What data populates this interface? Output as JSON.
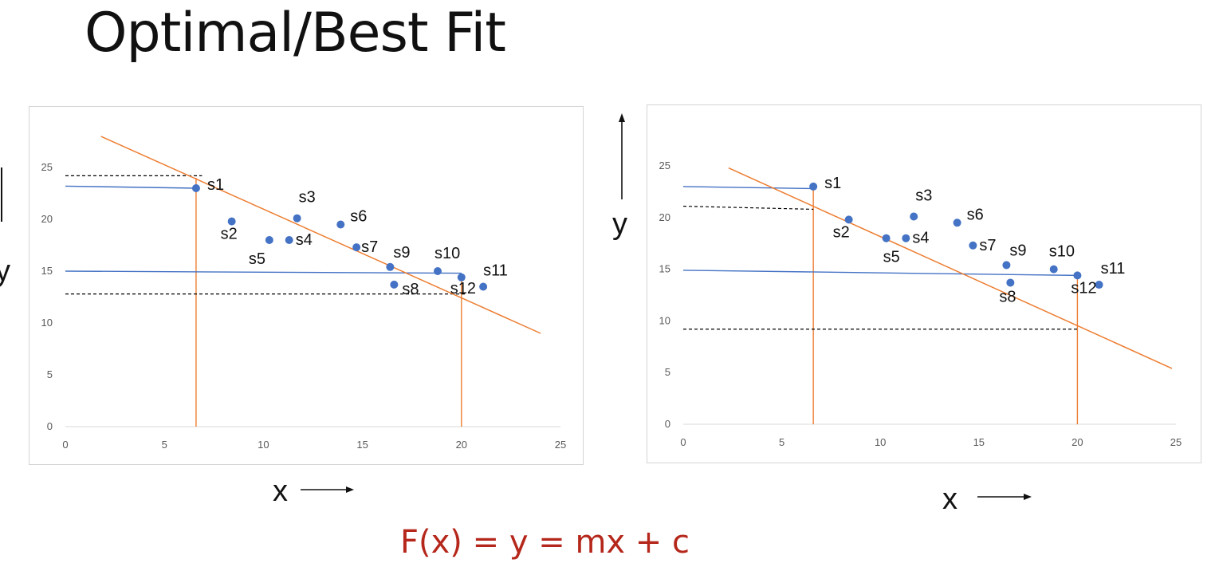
{
  "page": {
    "title": "Optimal/Best Fit",
    "formula": "F(x) = y = mx + c"
  },
  "colors": {
    "points": "#4472c4",
    "fit_line": "#ed7d31",
    "drop_line": "#ed7d31",
    "horizontal_line": "#4472c4",
    "dashed_line": "#000000",
    "formula": "#b5271b"
  },
  "chart_data": [
    {
      "type": "scatter",
      "title": "",
      "xlabel": "x",
      "ylabel": "y",
      "xlim": [
        0,
        25
      ],
      "ylim": [
        0,
        25
      ],
      "xticks": [
        "0",
        "5",
        "10",
        "15",
        "20",
        "25"
      ],
      "yticks": [
        "0",
        "5",
        "10",
        "15",
        "20",
        "25"
      ],
      "grid": false,
      "points": [
        {
          "label": "s1",
          "x": 6.6,
          "y": 23.0
        },
        {
          "label": "s2",
          "x": 8.4,
          "y": 19.8
        },
        {
          "label": "s3",
          "x": 11.7,
          "y": 20.1
        },
        {
          "label": "s4",
          "x": 11.3,
          "y": 18.0
        },
        {
          "label": "s5",
          "x": 10.3,
          "y": 18.0
        },
        {
          "label": "s6",
          "x": 13.9,
          "y": 19.5
        },
        {
          "label": "s7",
          "x": 14.7,
          "y": 17.3
        },
        {
          "label": "s8",
          "x": 16.6,
          "y": 13.7
        },
        {
          "label": "s9",
          "x": 16.4,
          "y": 15.4
        },
        {
          "label": "s10",
          "x": 18.8,
          "y": 15.0
        },
        {
          "label": "s11",
          "x": 21.1,
          "y": 13.5
        },
        {
          "label": "s12",
          "x": 20.0,
          "y": 14.4
        }
      ],
      "fit_line": {
        "x1": 1.8,
        "y1": 28.0,
        "x2": 24.0,
        "y2": 9.0
      },
      "horizontal_lines": [
        {
          "x1": 0,
          "y1": 23.2,
          "x2": 6.6,
          "y2": 23.0
        },
        {
          "x1": 0,
          "y1": 15.0,
          "x2": 20.0,
          "y2": 14.8
        }
      ],
      "dashed_lines": [
        {
          "x1": 0,
          "y1": 24.2,
          "x2": 6.9,
          "y2": 24.2
        },
        {
          "x1": 0,
          "y1": 12.8,
          "x2": 20.2,
          "y2": 12.8
        }
      ],
      "vertical_lines": [
        {
          "x": 6.6,
          "y_top": 24.0
        },
        {
          "x": 20.0,
          "y_top": 14.6
        }
      ]
    },
    {
      "type": "scatter",
      "title": "",
      "xlabel": "x",
      "ylabel": "y",
      "xlim": [
        0,
        25
      ],
      "ylim": [
        0,
        25
      ],
      "xticks": [
        "0",
        "5",
        "10",
        "15",
        "20",
        "25"
      ],
      "yticks": [
        "0",
        "5",
        "10",
        "15",
        "20",
        "25"
      ],
      "grid": false,
      "points": [
        {
          "label": "s1",
          "x": 6.6,
          "y": 23.0
        },
        {
          "label": "s2",
          "x": 8.4,
          "y": 19.8
        },
        {
          "label": "s3",
          "x": 11.7,
          "y": 20.1
        },
        {
          "label": "s4",
          "x": 11.3,
          "y": 18.0
        },
        {
          "label": "s5",
          "x": 10.3,
          "y": 18.0
        },
        {
          "label": "s6",
          "x": 13.9,
          "y": 19.5
        },
        {
          "label": "s7",
          "x": 14.7,
          "y": 17.3
        },
        {
          "label": "s8",
          "x": 16.6,
          "y": 13.7
        },
        {
          "label": "s9",
          "x": 16.4,
          "y": 15.4
        },
        {
          "label": "s10",
          "x": 18.8,
          "y": 15.0
        },
        {
          "label": "s11",
          "x": 21.1,
          "y": 13.5
        },
        {
          "label": "s12",
          "x": 20.0,
          "y": 14.4
        }
      ],
      "fit_line": {
        "x1": 2.3,
        "y1": 24.8,
        "x2": 24.8,
        "y2": 5.4
      },
      "horizontal_lines": [
        {
          "x1": 0,
          "y1": 23.0,
          "x2": 6.6,
          "y2": 22.8
        },
        {
          "x1": 0,
          "y1": 14.9,
          "x2": 20.0,
          "y2": 14.4
        }
      ],
      "dashed_lines": [
        {
          "x1": 0,
          "y1": 21.1,
          "x2": 6.6,
          "y2": 20.8
        },
        {
          "x1": 0,
          "y1": 9.2,
          "x2": 20.0,
          "y2": 9.2
        }
      ],
      "vertical_lines": [
        {
          "x": 6.6,
          "y_top": 23.0
        },
        {
          "x": 20.0,
          "y_top": 14.4
        }
      ]
    }
  ]
}
